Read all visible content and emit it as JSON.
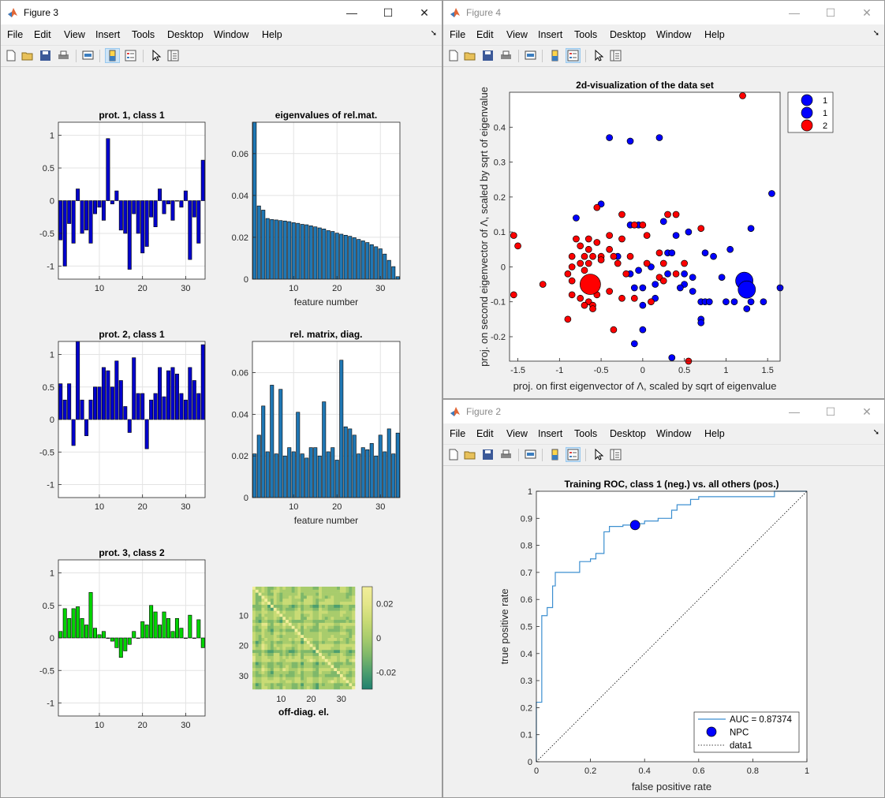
{
  "windows": {
    "fig3": {
      "title": "Figure 3"
    },
    "fig4": {
      "title": "Figure 4"
    },
    "fig2": {
      "title": "Figure 2"
    }
  },
  "controls": {
    "minimize": "—",
    "maximize": "☐",
    "close": "✕"
  },
  "menu": [
    "File",
    "Edit",
    "View",
    "Insert",
    "Tools",
    "Desktop",
    "Window",
    "Help"
  ],
  "toolbar_icons": [
    "new-figure-icon",
    "open-icon",
    "save-icon",
    "print-icon",
    "link-plot-icon",
    "colorbar-icon",
    "legend-icon",
    "pointer-icon",
    "property-inspector-icon"
  ],
  "colors": {
    "bar_blue": "#0000cc",
    "bar_green": "#00d400",
    "bar_teal": "#1f77b4",
    "class1": "#0000ff",
    "class2": "#ff0000",
    "roc": "#3c8fd0"
  },
  "figure3": {
    "prot1": {
      "title": "prot. 1, class 1"
    },
    "prot2": {
      "title": "prot. 2, class 1"
    },
    "prot3": {
      "title": "prot. 3, class 2"
    },
    "eig": {
      "title": "eigenvalues of rel.mat.",
      "xlabel": "feature number"
    },
    "diag": {
      "title": "rel. matrix, diag.",
      "xlabel": "feature number"
    },
    "offdiag": {
      "xlabel": "off-diag. el."
    }
  },
  "figure4": {
    "title": "2d-visualization of the data set",
    "xlabel": "proj. on first eigenvector of Λ, scaled by sqrt of eigenvalue",
    "ylabel": "proj. on second eigenvector of Λ, scaled by sqrt of eigenvalue",
    "legend": [
      "1",
      "1",
      "2"
    ]
  },
  "figure2": {
    "title": "Training ROC, class 1 (neg.) vs. all others (pos.)",
    "xlabel": "false positive rate",
    "ylabel": "true positive rate",
    "legend": [
      "AUC = 0.87374",
      "NPC",
      "data1"
    ]
  },
  "chart_data": [
    {
      "type": "bar",
      "title": "prot. 1, class 1",
      "xlabel": "",
      "ylabel": "",
      "x": [
        1,
        2,
        3,
        4,
        5,
        6,
        7,
        8,
        9,
        10,
        11,
        12,
        13,
        14,
        15,
        16,
        17,
        18,
        19,
        20,
        21,
        22,
        23,
        24,
        25,
        26,
        27,
        28,
        29,
        30,
        31,
        32,
        33,
        34
      ],
      "values": [
        -0.6,
        -1.0,
        -0.35,
        -0.65,
        0.18,
        -0.5,
        -0.45,
        -0.65,
        -0.2,
        -0.1,
        -0.3,
        0.95,
        -0.05,
        0.15,
        -0.45,
        -0.5,
        -1.05,
        -0.2,
        -0.5,
        -0.8,
        -0.7,
        -0.25,
        -0.4,
        0.18,
        -0.2,
        -0.05,
        -0.3,
        0.0,
        -0.1,
        0.15,
        -0.9,
        -0.25,
        -0.65,
        0.62
      ],
      "ylim": [
        -1.2,
        1.2
      ],
      "xticks": [
        10,
        20,
        30
      ],
      "yticks": [
        -1,
        -0.5,
        0,
        0.5,
        1
      ],
      "grid": true
    },
    {
      "type": "bar",
      "title": "eigenvalues of rel.mat.",
      "xlabel": "feature number",
      "ylabel": "",
      "x": [
        1,
        2,
        3,
        4,
        5,
        6,
        7,
        8,
        9,
        10,
        11,
        12,
        13,
        14,
        15,
        16,
        17,
        18,
        19,
        20,
        21,
        22,
        23,
        24,
        25,
        26,
        27,
        28,
        29,
        30,
        31,
        32,
        33,
        34
      ],
      "values": [
        0.075,
        0.035,
        0.033,
        0.029,
        0.0285,
        0.0283,
        0.028,
        0.0278,
        0.0275,
        0.027,
        0.0267,
        0.0262,
        0.026,
        0.0255,
        0.025,
        0.0245,
        0.024,
        0.0232,
        0.0228,
        0.022,
        0.0215,
        0.021,
        0.0205,
        0.0198,
        0.019,
        0.0183,
        0.0175,
        0.0165,
        0.0155,
        0.0145,
        0.012,
        0.009,
        0.006,
        0.0012
      ],
      "ylim": [
        0,
        0.075
      ],
      "xticks": [
        10,
        20,
        30
      ],
      "yticks": [
        0,
        0.02,
        0.04,
        0.06
      ],
      "grid": true
    },
    {
      "type": "bar",
      "title": "prot. 2, class 1",
      "xlabel": "",
      "ylabel": "",
      "x": [
        1,
        2,
        3,
        4,
        5,
        6,
        7,
        8,
        9,
        10,
        11,
        12,
        13,
        14,
        15,
        16,
        17,
        18,
        19,
        20,
        21,
        22,
        23,
        24,
        25,
        26,
        27,
        28,
        29,
        30,
        31,
        32,
        33,
        34
      ],
      "values": [
        0.55,
        0.3,
        0.55,
        -0.4,
        1.2,
        0.3,
        -0.25,
        0.3,
        0.5,
        0.5,
        0.8,
        0.75,
        0.5,
        0.9,
        0.6,
        0.2,
        -0.2,
        0.95,
        0.4,
        0.4,
        -0.45,
        0.3,
        0.4,
        0.8,
        0.35,
        0.75,
        0.8,
        0.7,
        0.4,
        0.3,
        0.8,
        0.6,
        0.4,
        1.15
      ],
      "ylim": [
        -1.2,
        1.2
      ],
      "xticks": [
        10,
        20,
        30
      ],
      "yticks": [
        -1,
        -0.5,
        0,
        0.5,
        1
      ],
      "grid": true
    },
    {
      "type": "bar",
      "title": "rel. matrix, diag.",
      "xlabel": "feature number",
      "ylabel": "",
      "x": [
        1,
        2,
        3,
        4,
        5,
        6,
        7,
        8,
        9,
        10,
        11,
        12,
        13,
        14,
        15,
        16,
        17,
        18,
        19,
        20,
        21,
        22,
        23,
        24,
        25,
        26,
        27,
        28,
        29,
        30,
        31,
        32,
        33,
        34
      ],
      "values": [
        0.021,
        0.03,
        0.044,
        0.022,
        0.054,
        0.021,
        0.052,
        0.02,
        0.024,
        0.022,
        0.041,
        0.021,
        0.019,
        0.024,
        0.024,
        0.02,
        0.046,
        0.022,
        0.024,
        0.018,
        0.066,
        0.034,
        0.033,
        0.03,
        0.021,
        0.024,
        0.023,
        0.026,
        0.02,
        0.03,
        0.022,
        0.033,
        0.021,
        0.031
      ],
      "ylim": [
        0,
        0.075
      ],
      "xticks": [
        10,
        20,
        30
      ],
      "yticks": [
        0,
        0.02,
        0.04,
        0.06
      ],
      "grid": true
    },
    {
      "type": "bar",
      "title": "prot. 3, class 2",
      "xlabel": "",
      "ylabel": "",
      "x": [
        1,
        2,
        3,
        4,
        5,
        6,
        7,
        8,
        9,
        10,
        11,
        12,
        13,
        14,
        15,
        16,
        17,
        18,
        19,
        20,
        21,
        22,
        23,
        24,
        25,
        26,
        27,
        28,
        29,
        30,
        31,
        32,
        33,
        34
      ],
      "values": [
        0.1,
        0.45,
        0.3,
        0.45,
        0.48,
        0.3,
        0.2,
        0.7,
        0.15,
        0.05,
        0.1,
        0.0,
        -0.05,
        -0.15,
        -0.3,
        -0.2,
        -0.1,
        0.1,
        0.0,
        0.25,
        0.2,
        0.5,
        0.4,
        0.2,
        0.4,
        0.3,
        0.1,
        0.3,
        0.15,
        0.0,
        0.35,
        0.0,
        0.28,
        -0.15
      ],
      "ylim": [
        -1.2,
        1.2
      ],
      "xticks": [
        10,
        20,
        30
      ],
      "yticks": [
        -1,
        -0.5,
        0,
        0.5,
        1
      ],
      "grid": true
    },
    {
      "type": "heatmap",
      "title": "",
      "xlabel": "off-diag. el.",
      "ylabel": "",
      "size": 34,
      "xticks": [
        10,
        20,
        30
      ],
      "yticks": [
        10,
        20,
        30
      ],
      "colorbar_ticks": [
        0.02,
        0,
        -0.02
      ],
      "clim": [
        -0.03,
        0.03
      ]
    },
    {
      "type": "scatter",
      "title": "2d-visualization of the data set",
      "xlabel": "proj. on first eigenvector of Λ, scaled by sqrt of eigenvalue",
      "ylabel": "proj. on second eigenvector of Λ, scaled by sqrt of eigenvalue",
      "xlim": [
        -1.6,
        1.65
      ],
      "ylim": [
        -0.27,
        0.5
      ],
      "xticks": [
        -1.5,
        -1,
        -0.5,
        0,
        0.5,
        1,
        1.5
      ],
      "yticks": [
        -0.2,
        -0.1,
        0,
        0.1,
        0.2,
        0.3,
        0.4
      ],
      "legend": "outside-right",
      "grid": false,
      "series": [
        {
          "name": "1",
          "points": [
            [
              -0.4,
              0.37
            ],
            [
              -0.15,
              0.36
            ],
            [
              0.2,
              0.37
            ],
            [
              1.55,
              0.21
            ],
            [
              -0.8,
              0.14
            ],
            [
              -0.5,
              0.18
            ],
            [
              -0.15,
              0.12
            ],
            [
              -0.05,
              0.12
            ],
            [
              0.25,
              0.13
            ],
            [
              0.4,
              0.09
            ],
            [
              0.55,
              0.1
            ],
            [
              1.3,
              0.11
            ],
            [
              0.3,
              0.04
            ],
            [
              0.35,
              0.04
            ],
            [
              0.75,
              0.04
            ],
            [
              0.85,
              0.03
            ],
            [
              1.05,
              0.05
            ],
            [
              -0.3,
              0.03
            ],
            [
              -0.05,
              -0.01
            ],
            [
              0.1,
              0.0
            ],
            [
              -0.15,
              -0.02
            ],
            [
              0.3,
              -0.02
            ],
            [
              0.5,
              -0.02
            ],
            [
              0.6,
              -0.03
            ],
            [
              0.95,
              -0.03
            ],
            [
              0.15,
              -0.05
            ],
            [
              0.5,
              -0.05
            ],
            [
              0.6,
              -0.07
            ],
            [
              0.45,
              -0.06
            ],
            [
              0.0,
              -0.06
            ],
            [
              -0.1,
              -0.06
            ],
            [
              0.15,
              -0.09
            ],
            [
              0.7,
              -0.1
            ],
            [
              0.75,
              -0.1
            ],
            [
              0.8,
              -0.1
            ],
            [
              1.0,
              -0.1
            ],
            [
              1.1,
              -0.1
            ],
            [
              1.3,
              -0.1
            ],
            [
              1.45,
              -0.1
            ],
            [
              1.25,
              -0.12
            ],
            [
              0.7,
              -0.15
            ],
            [
              0.7,
              -0.16
            ],
            [
              0.0,
              -0.18
            ],
            [
              -0.1,
              -0.22
            ],
            [
              0.35,
              -0.26
            ],
            [
              1.65,
              -0.06
            ],
            [
              1.2,
              -0.04
            ],
            [
              0.0,
              -0.11
            ]
          ]
        },
        {
          "name": "1",
          "points": [
            [
              1.22,
              -0.04
            ],
            [
              1.25,
              -0.065
            ]
          ]
        },
        {
          "name": "2",
          "points": [
            [
              1.2,
              0.49
            ],
            [
              -0.55,
              0.17
            ],
            [
              -0.25,
              0.15
            ],
            [
              0.3,
              0.15
            ],
            [
              0.4,
              0.15
            ],
            [
              -0.1,
              0.12
            ],
            [
              0.0,
              0.12
            ],
            [
              0.7,
              0.11
            ],
            [
              -1.55,
              0.09
            ],
            [
              -1.5,
              0.06
            ],
            [
              -0.4,
              0.09
            ],
            [
              -0.8,
              0.08
            ],
            [
              -0.65,
              0.08
            ],
            [
              -0.25,
              0.08
            ],
            [
              0.05,
              0.09
            ],
            [
              -0.55,
              0.07
            ],
            [
              -0.75,
              0.06
            ],
            [
              -0.4,
              0.05
            ],
            [
              -0.65,
              0.05
            ],
            [
              -0.85,
              0.03
            ],
            [
              -0.7,
              0.03
            ],
            [
              -0.6,
              0.03
            ],
            [
              -0.5,
              0.03
            ],
            [
              -0.35,
              0.03
            ],
            [
              -0.15,
              0.03
            ],
            [
              0.2,
              0.04
            ],
            [
              -0.75,
              0.01
            ],
            [
              -0.65,
              0.01
            ],
            [
              -0.85,
              0.0
            ],
            [
              -0.7,
              -0.01
            ],
            [
              -0.5,
              0.02
            ],
            [
              -0.3,
              0.01
            ],
            [
              0.05,
              0.01
            ],
            [
              0.25,
              0.01
            ],
            [
              0.5,
              0.01
            ],
            [
              -0.9,
              -0.02
            ],
            [
              -0.85,
              -0.04
            ],
            [
              -0.2,
              -0.02
            ],
            [
              0.2,
              -0.03
            ],
            [
              0.4,
              -0.02
            ],
            [
              -1.2,
              -0.05
            ],
            [
              -0.85,
              -0.08
            ],
            [
              -0.75,
              -0.09
            ],
            [
              -0.65,
              -0.1
            ],
            [
              -0.55,
              -0.08
            ],
            [
              -0.4,
              -0.07
            ],
            [
              -0.25,
              -0.09
            ],
            [
              -0.1,
              -0.09
            ],
            [
              0.1,
              -0.1
            ],
            [
              -0.7,
              -0.11
            ],
            [
              -0.6,
              -0.11
            ],
            [
              -1.55,
              -0.08
            ],
            [
              -0.35,
              -0.18
            ],
            [
              0.55,
              -0.27
            ],
            [
              -0.9,
              -0.15
            ],
            [
              -0.6,
              -0.12
            ],
            [
              0.25,
              -0.04
            ]
          ]
        },
        {
          "name": "2",
          "points": [
            [
              -0.63,
              -0.05
            ]
          ]
        }
      ]
    },
    {
      "type": "line",
      "title": "Training ROC, class 1 (neg.) vs. all others (pos.)",
      "xlabel": "false positive rate",
      "ylabel": "true positive rate",
      "xlim": [
        0,
        1
      ],
      "ylim": [
        0,
        1
      ],
      "xticks": [
        0,
        0.2,
        0.4,
        0.6,
        0.8,
        1
      ],
      "yticks": [
        0,
        0.1,
        0.2,
        0.3,
        0.4,
        0.5,
        0.6,
        0.7,
        0.8,
        0.9,
        1
      ],
      "legend": "bottom-right",
      "grid": false,
      "series": [
        {
          "name": "AUC = 0.87374",
          "x": [
            0,
            0,
            0.02,
            0.02,
            0.04,
            0.04,
            0.06,
            0.06,
            0.07,
            0.07,
            0.16,
            0.16,
            0.2,
            0.2,
            0.22,
            0.22,
            0.25,
            0.25,
            0.27,
            0.27,
            0.32,
            0.32,
            0.37,
            0.37,
            0.4,
            0.4,
            0.45,
            0.45,
            0.5,
            0.5,
            0.52,
            0.52,
            0.57,
            0.57,
            0.6,
            0.6,
            0.88,
            0.88,
            1
          ],
          "y": [
            0,
            0.22,
            0.22,
            0.54,
            0.54,
            0.57,
            0.57,
            0.65,
            0.65,
            0.7,
            0.7,
            0.74,
            0.74,
            0.75,
            0.75,
            0.77,
            0.77,
            0.85,
            0.85,
            0.87,
            0.87,
            0.875,
            0.875,
            0.88,
            0.88,
            0.89,
            0.89,
            0.9,
            0.9,
            0.93,
            0.93,
            0.95,
            0.95,
            0.97,
            0.97,
            0.98,
            0.98,
            1.0,
            1.0
          ]
        },
        {
          "name": "NPC",
          "x": [
            0.365
          ],
          "y": [
            0.875
          ]
        },
        {
          "name": "data1",
          "x": [
            0,
            1
          ],
          "y": [
            0,
            1
          ]
        }
      ]
    }
  ]
}
